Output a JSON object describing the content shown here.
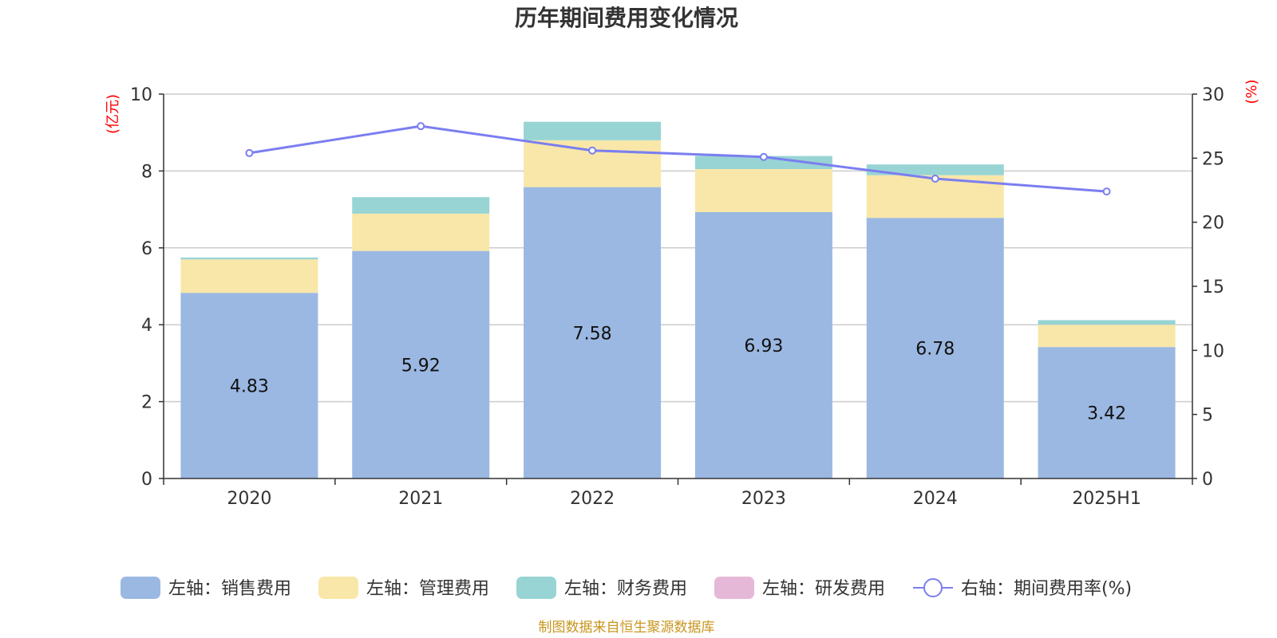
{
  "chart_data": {
    "type": "bar",
    "title": "历年期间费用变化情况",
    "categories": [
      "2020",
      "2021",
      "2022",
      "2023",
      "2024",
      "2025H1"
    ],
    "left_axis": {
      "unit": "(亿元)",
      "ylim": [
        0,
        10
      ],
      "ticks": [
        "0",
        "2",
        "4",
        "6",
        "8",
        "10"
      ]
    },
    "right_axis": {
      "unit": "(%)",
      "ylim": [
        0,
        30
      ],
      "ticks": [
        "0",
        "5",
        "10",
        "15",
        "20",
        "25",
        "30"
      ]
    },
    "series": [
      {
        "name": "左轴：销售费用",
        "kind": "bar",
        "axis": "left",
        "color": "#9bb8e2",
        "values": [
          4.83,
          5.92,
          7.58,
          6.93,
          6.78,
          3.42
        ],
        "labels": [
          "4.83",
          "5.92",
          "7.58",
          "6.93",
          "6.78",
          "3.42"
        ]
      },
      {
        "name": "左轴：管理费用",
        "kind": "bar",
        "axis": "left",
        "color": "#f8e7a8",
        "values": [
          0.87,
          0.97,
          1.22,
          1.12,
          1.11,
          0.58
        ]
      },
      {
        "name": "左轴：财务费用",
        "kind": "bar",
        "axis": "left",
        "color": "#98d4d4",
        "values": [
          0.05,
          0.43,
          0.48,
          0.34,
          0.28,
          0.12
        ]
      },
      {
        "name": "左轴：研发费用",
        "kind": "bar",
        "axis": "left",
        "color": "#e6b8d8",
        "values": [
          0,
          0,
          0,
          0,
          0,
          0
        ]
      },
      {
        "name": "右轴：期间费用率(%)",
        "kind": "line",
        "axis": "right",
        "color": "#7b7ef0",
        "values": [
          25.4,
          27.5,
          25.6,
          25.1,
          23.4,
          22.4
        ]
      }
    ],
    "grid": true,
    "legend_position": "bottom"
  },
  "source_note": "制图数据来自恒生聚源数据库"
}
